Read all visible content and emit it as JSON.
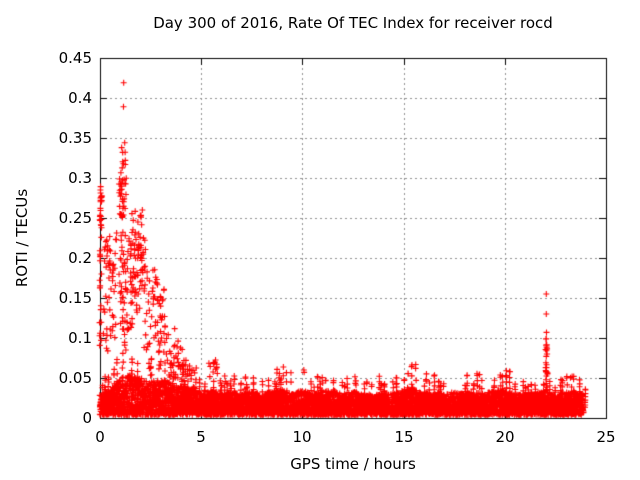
{
  "window_title": "Day 300 of 2016, Rate Of TEC Index for receiver rocd",
  "chart_data": {
    "type": "scatter",
    "marker": "plus",
    "color": "#ff0000",
    "grid_color": "#909090",
    "frame_color": "#000000",
    "grid": true,
    "legend": "none",
    "title": "Day 300 of 2016, Rate Of TEC Index for receiver rocd",
    "xlabel": "GPS time / hours",
    "ylabel": "ROTI / TECUs",
    "xlim": [
      0,
      25
    ],
    "ylim": [
      0,
      0.45
    ],
    "x_data_end": 23.9,
    "xticks": [
      0,
      5,
      10,
      15,
      20,
      25
    ],
    "yticks": [
      0,
      0.05,
      0.1,
      0.15,
      0.2,
      0.25,
      0.3,
      0.35,
      0.4,
      0.45
    ],
    "xtick_labels": [
      "0",
      "5",
      "10",
      "15",
      "20",
      "25"
    ],
    "ytick_labels": [
      "0",
      "0.05",
      "0.1",
      "0.15",
      "0.2",
      "0.25",
      "0.3",
      "0.35",
      "0.4",
      "0.45"
    ],
    "description": "Dense baseline band of ROTI values 0.005-0.05 TECU across all 24 h; strong activity hours 0-4 peaking 0.42 TECU near 1.2 h; isolated spike to 0.155 TECU at 22 h; data ends 23.9 h",
    "envelope": [
      [
        0,
        0.03,
        0.055
      ],
      [
        0.5,
        0.035,
        0.06
      ],
      [
        1,
        0.05,
        0.09
      ],
      [
        1.5,
        0.055,
        0.1
      ],
      [
        2,
        0.05,
        0.09
      ],
      [
        2.5,
        0.045,
        0.08
      ],
      [
        3,
        0.05,
        0.09
      ],
      [
        3.5,
        0.045,
        0.08
      ],
      [
        4,
        0.04,
        0.075
      ],
      [
        4.5,
        0.035,
        0.065
      ],
      [
        5,
        0.03,
        0.055
      ],
      [
        5.5,
        0.035,
        0.075
      ],
      [
        6,
        0.03,
        0.055
      ],
      [
        6.5,
        0.033,
        0.06
      ],
      [
        7,
        0.03,
        0.058
      ],
      [
        7.5,
        0.033,
        0.055
      ],
      [
        8,
        0.03,
        0.05
      ],
      [
        8.5,
        0.033,
        0.06
      ],
      [
        9,
        0.035,
        0.065
      ],
      [
        9.5,
        0.03,
        0.055
      ],
      [
        10,
        0.035,
        0.068
      ],
      [
        10.5,
        0.03,
        0.05
      ],
      [
        11,
        0.033,
        0.06
      ],
      [
        11.5,
        0.035,
        0.065
      ],
      [
        12,
        0.03,
        0.05
      ],
      [
        12.5,
        0.033,
        0.058
      ],
      [
        13,
        0.03,
        0.05
      ],
      [
        13.5,
        0.03,
        0.055
      ],
      [
        14,
        0.03,
        0.05
      ],
      [
        14.5,
        0.03,
        0.052
      ],
      [
        15,
        0.035,
        0.06
      ],
      [
        15.5,
        0.038,
        0.07
      ],
      [
        16,
        0.03,
        0.055
      ],
      [
        16.5,
        0.033,
        0.058
      ],
      [
        17,
        0.03,
        0.05
      ],
      [
        17.5,
        0.033,
        0.06
      ],
      [
        18,
        0.03,
        0.055
      ],
      [
        18.5,
        0.033,
        0.062
      ],
      [
        19,
        0.03,
        0.05
      ],
      [
        19.5,
        0.035,
        0.065
      ],
      [
        20,
        0.035,
        0.066
      ],
      [
        20.5,
        0.03,
        0.05
      ],
      [
        21,
        0.028,
        0.045
      ],
      [
        21.5,
        0.03,
        0.05
      ],
      [
        22,
        0.035,
        0.06
      ],
      [
        22.5,
        0.028,
        0.045
      ],
      [
        23,
        0.032,
        0.055
      ],
      [
        23.5,
        0.033,
        0.058
      ],
      [
        23.9,
        0.03,
        0.045
      ]
    ],
    "clusters": [
      {
        "x": 0.03,
        "dx": 0.05,
        "y0": 0.09,
        "y1": 0.29,
        "n": 30
      },
      {
        "x": 0.05,
        "dx": 0.04,
        "y0": 0.24,
        "y1": 0.285,
        "n": 8
      },
      {
        "x": 0.3,
        "dx": 0.2,
        "y0": 0.08,
        "y1": 0.225,
        "n": 22
      },
      {
        "x": 0.65,
        "dx": 0.2,
        "y0": 0.1,
        "y1": 0.25,
        "n": 20
      },
      {
        "x": 0.55,
        "dx": 0.12,
        "y0": 0.16,
        "y1": 0.22,
        "n": 10
      },
      {
        "x": 1.12,
        "dx": 0.18,
        "y0": 0.08,
        "y1": 0.3,
        "n": 55
      },
      {
        "x": 1.15,
        "dx": 0.12,
        "y0": 0.25,
        "y1": 0.345,
        "n": 22
      },
      {
        "x": 1.45,
        "dx": 0.15,
        "y0": 0.1,
        "y1": 0.24,
        "n": 20
      },
      {
        "x": 1.8,
        "dx": 0.3,
        "y0": 0.12,
        "y1": 0.265,
        "n": 48
      },
      {
        "x": 2.0,
        "dx": 0.25,
        "y0": 0.16,
        "y1": 0.225,
        "n": 30
      },
      {
        "x": 2.35,
        "dx": 0.18,
        "y0": 0.06,
        "y1": 0.185,
        "n": 18
      },
      {
        "x": 2.7,
        "dx": 0.15,
        "y0": 0.1,
        "y1": 0.2,
        "n": 20
      },
      {
        "x": 3.0,
        "dx": 0.18,
        "y0": 0.08,
        "y1": 0.165,
        "n": 22
      },
      {
        "x": 3.35,
        "dx": 0.2,
        "y0": 0.05,
        "y1": 0.13,
        "n": 20
      },
      {
        "x": 3.75,
        "dx": 0.2,
        "y0": 0.04,
        "y1": 0.115,
        "n": 18
      },
      {
        "x": 4.15,
        "dx": 0.18,
        "y0": 0.03,
        "y1": 0.088,
        "n": 14
      },
      {
        "x": 4.6,
        "dx": 0.2,
        "y0": 0.025,
        "y1": 0.068,
        "n": 10
      },
      {
        "x": 5.6,
        "dx": 0.22,
        "y0": 0.03,
        "y1": 0.075,
        "n": 12
      },
      {
        "x": 22.05,
        "dx": 0.05,
        "y0": 0.035,
        "y1": 0.1,
        "n": 16
      },
      {
        "x": 23.3,
        "dx": 0.25,
        "y0": 0.02,
        "y1": 0.055,
        "n": 10
      }
    ],
    "outliers": [
      [
        1.17,
        0.419
      ],
      [
        1.16,
        0.389
      ],
      [
        1.07,
        0.338
      ],
      [
        1.22,
        0.344
      ],
      [
        1.12,
        0.332
      ],
      [
        1.25,
        0.322
      ],
      [
        0.02,
        0.285
      ],
      [
        0.03,
        0.272
      ],
      [
        0.02,
        0.262
      ],
      [
        0.04,
        0.252
      ],
      [
        22.05,
        0.155
      ],
      [
        22.05,
        0.13
      ],
      [
        22.06,
        0.107
      ],
      [
        22.05,
        0.099
      ],
      [
        22.04,
        0.091
      ],
      [
        22.06,
        0.084
      ],
      [
        22.05,
        0.077
      ],
      [
        22.03,
        0.069
      ],
      [
        22.06,
        0.063
      ]
    ]
  }
}
